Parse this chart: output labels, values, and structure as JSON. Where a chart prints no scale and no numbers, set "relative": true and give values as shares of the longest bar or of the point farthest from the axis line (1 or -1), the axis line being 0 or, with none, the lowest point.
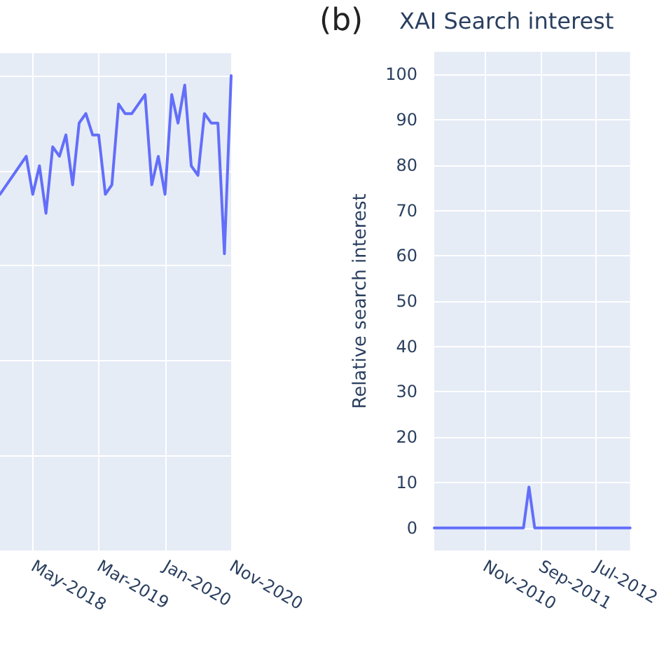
{
  "chart_data": [
    {
      "type": "line",
      "relative": true,
      "grid": true,
      "line_style": "solid",
      "marker": "none",
      "tick_labels": "x",
      "xlim": [
        "2017-12",
        "2020-11"
      ],
      "xticks": [
        {
          "value": "2018-05",
          "label": "May-2018"
        },
        {
          "value": "2019-03",
          "label": "Mar-2019"
        },
        {
          "value": "2020-01",
          "label": "Jan-2020"
        },
        {
          "value": "2020-11",
          "label": "Nov-2020"
        }
      ],
      "series": [
        {
          "color": "#636efa",
          "x": [
            "2017-12",
            "2018-04",
            "2018-05",
            "2018-06",
            "2018-07",
            "2018-08",
            "2018-09",
            "2018-10",
            "2018-11",
            "2018-12",
            "2019-01",
            "2019-02",
            "2019-03",
            "2019-04",
            "2019-05",
            "2019-06",
            "2019-07",
            "2019-08",
            "2019-10",
            "2019-11",
            "2019-12",
            "2020-01",
            "2020-02",
            "2020-03",
            "2020-04",
            "2020-05",
            "2020-06",
            "2020-07",
            "2020-08",
            "2020-09",
            "2020-10",
            "2020-11"
          ],
          "values": [
            0.75,
            0.83,
            0.75,
            0.81,
            0.71,
            0.85,
            0.83,
            0.875,
            0.77,
            0.9,
            0.92,
            0.875,
            0.875,
            0.75,
            0.77,
            0.94,
            0.92,
            0.92,
            0.96,
            0.77,
            0.83,
            0.75,
            0.96,
            0.9,
            0.98,
            0.81,
            0.79,
            0.92,
            0.9,
            0.9,
            0.625,
            1
          ]
        }
      ]
    },
    {
      "type": "line",
      "title": "XAI Search interest",
      "ylabel": "Relative search interest",
      "annotations": [
        "(b)"
      ],
      "grid": true,
      "line_style": "solid",
      "marker": "none",
      "xlim": [
        "2010-02",
        "2013-01"
      ],
      "ylim": [
        -5,
        105
      ],
      "yticks": [
        0,
        10,
        20,
        30,
        40,
        50,
        60,
        70,
        80,
        90,
        100
      ],
      "xticks": [
        {
          "value": "2010-11",
          "label": "Nov-2010"
        },
        {
          "value": "2011-09",
          "label": "Sep-2011"
        },
        {
          "value": "2012-07",
          "label": "Jul-2012"
        }
      ],
      "series": [
        {
          "color": "#636efa",
          "x": [
            "2010-02",
            "2011-06",
            "2011-07",
            "2011-08",
            "2013-01"
          ],
          "values": [
            0,
            0,
            9,
            0,
            0
          ]
        }
      ]
    }
  ]
}
